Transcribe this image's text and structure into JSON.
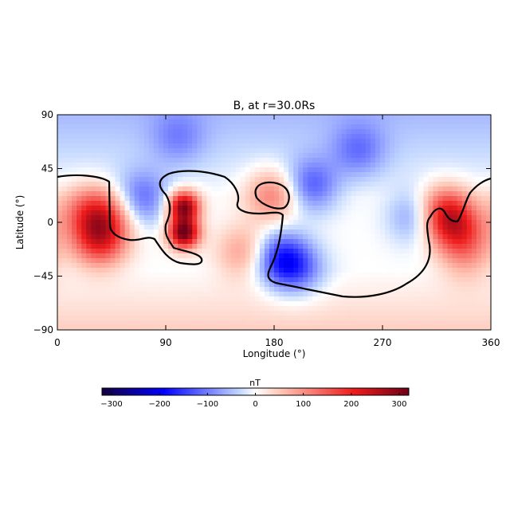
{
  "chart_data": {
    "type": "heatmap",
    "title": "B, at r=30.0Rs",
    "xlabel": "Longitude (°)",
    "ylabel": "Latitude (°)",
    "xlim": [
      0,
      360
    ],
    "ylim": [
      -90,
      90
    ],
    "xticks": [
      0,
      90,
      180,
      270,
      360
    ],
    "yticks": [
      90,
      45,
      0,
      -45,
      -90
    ],
    "xtick_labels": [
      "0",
      "90",
      "180",
      "270",
      "360"
    ],
    "ytick_labels": [
      "90",
      "45",
      "0",
      "−45",
      "−90"
    ],
    "colorbar": {
      "label": "nT",
      "range": [
        -320,
        320
      ],
      "ticks": [
        -300,
        -200,
        -100,
        0,
        100,
        200,
        300
      ],
      "tick_labels": [
        "−300",
        "−200",
        "−100",
        "0",
        "100",
        "200",
        "300"
      ],
      "colormap": [
        "#14003c",
        "#0000ff",
        "#c4d8ff",
        "#ffffff",
        "#ffc8b8",
        "#ee1c1c",
        "#700018"
      ]
    },
    "zero_contour": true,
    "field_features": [
      {
        "lon": 105,
        "lat": 13,
        "value": 300
      },
      {
        "lon": 105,
        "lat": -9,
        "value": 320
      },
      {
        "lon": 38,
        "lat": 6,
        "value": 150
      },
      {
        "lon": 35,
        "lat": -15,
        "value": 180
      },
      {
        "lon": 320,
        "lat": 7,
        "value": 220
      },
      {
        "lon": 335,
        "lat": -8,
        "value": 130
      },
      {
        "lon": 180,
        "lat": 23,
        "value": 120
      },
      {
        "lon": 155,
        "lat": -25,
        "value": 90
      },
      {
        "lon": 20,
        "lat": 10,
        "value": 70
      },
      {
        "lon": 340,
        "lat": -30,
        "value": 60
      },
      {
        "lon": 70,
        "lat": 20,
        "value": -110
      },
      {
        "lon": 210,
        "lat": 30,
        "value": -120
      },
      {
        "lon": 185,
        "lat": -30,
        "value": -150
      },
      {
        "lon": 200,
        "lat": -40,
        "value": -90
      },
      {
        "lon": 300,
        "lat": 5,
        "value": -110
      },
      {
        "lon": 250,
        "lat": 60,
        "value": -80
      },
      {
        "lon": 100,
        "lat": 70,
        "value": -60
      }
    ]
  }
}
